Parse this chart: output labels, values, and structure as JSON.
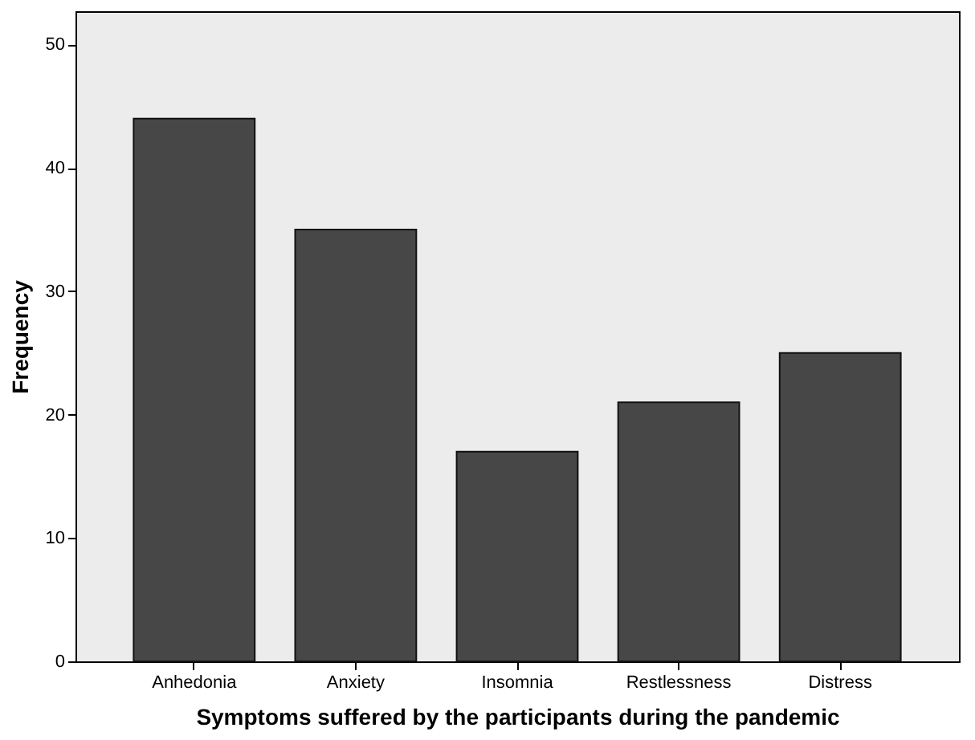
{
  "chart_data": {
    "type": "bar",
    "xlabel": "Symptoms suffered by the participants during the pandemic",
    "ylabel": "Frequency",
    "categories": [
      "Anhedonia",
      "Anxiety",
      "Insomnia",
      "Restlessness",
      "Distress"
    ],
    "values": [
      44,
      35,
      17,
      21,
      25
    ],
    "color": "#474747",
    "ylim": [
      0,
      52.7
    ],
    "yticks": [
      0,
      10,
      20,
      30,
      40,
      50
    ],
    "grid": false
  }
}
